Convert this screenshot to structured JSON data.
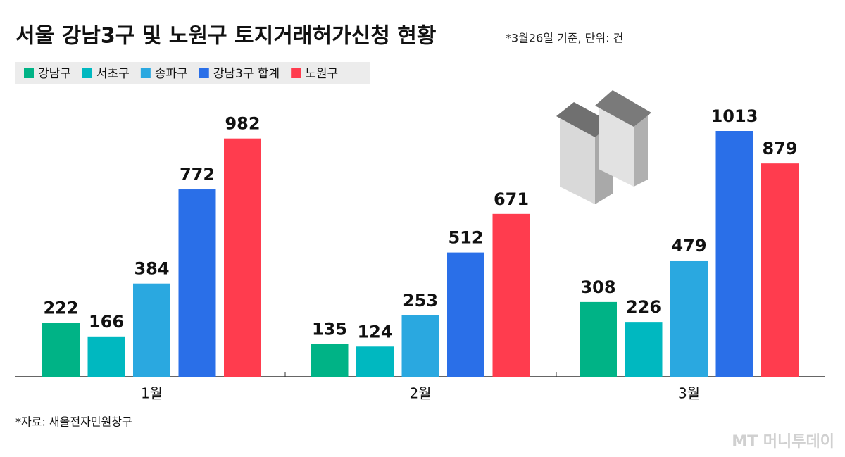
{
  "chart_data": {
    "type": "bar",
    "title": "서울 강남3구 및 노원구 토지거래허가신청 현황",
    "subtitle": "*3월26일 기준, 단위: 건",
    "source": "*자료: 새올전자민원창구",
    "watermark": "MT 머니투데이",
    "categories": [
      "1월",
      "2월",
      "3월"
    ],
    "series": [
      {
        "name": "강남구",
        "color": "#00b386",
        "values": [
          222,
          135,
          308
        ]
      },
      {
        "name": "서초구",
        "color": "#00b8c0",
        "values": [
          166,
          124,
          226
        ]
      },
      {
        "name": "송파구",
        "color": "#2aa8e0",
        "values": [
          384,
          253,
          479
        ]
      },
      {
        "name": "강남3구 합계",
        "color": "#2a6fe8",
        "values": [
          772,
          512,
          1013
        ]
      },
      {
        "name": "노원구",
        "color": "#ff3c4e",
        "values": [
          982,
          671,
          879
        ]
      }
    ]
  }
}
